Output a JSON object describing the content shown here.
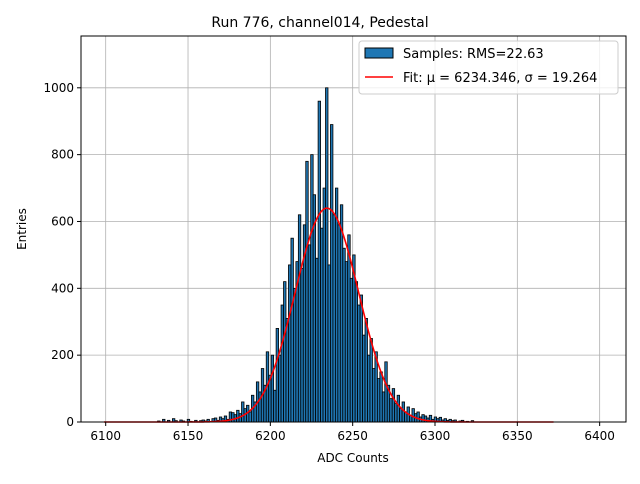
{
  "chart_data": {
    "type": "bar",
    "title": "Run 776, channel014, Pedestal",
    "xlabel": "ADC Counts",
    "ylabel": "Entries",
    "xlim": [
      6085,
      6416
    ],
    "ylim": [
      0,
      1155
    ],
    "xticks": [
      "6100",
      "6150",
      "6200",
      "6250",
      "6300",
      "6350",
      "6400"
    ],
    "yticks": [
      "0",
      "200",
      "400",
      "600",
      "800",
      "1000"
    ],
    "grid": true,
    "legend_position": "top-right",
    "histogram": {
      "name": "Samples: RMS=22.63",
      "bin_start": 6130,
      "bin_width": 1.5,
      "color": "#1f77b4",
      "values": [
        0,
        3,
        0,
        8,
        0,
        5,
        0,
        10,
        4,
        0,
        6,
        3,
        0,
        8,
        2,
        0,
        5,
        0,
        4,
        6,
        3,
        8,
        0,
        10,
        12,
        5,
        15,
        10,
        18,
        8,
        30,
        28,
        22,
        35,
        25,
        60,
        40,
        50,
        30,
        80,
        60,
        120,
        90,
        160,
        110,
        210,
        140,
        200,
        95,
        280,
        200,
        350,
        420,
        310,
        470,
        550,
        400,
        480,
        620,
        460,
        590,
        780,
        530,
        800,
        680,
        490,
        960,
        580,
        700,
        1000,
        470,
        890,
        620,
        700,
        590,
        650,
        520,
        480,
        560,
        430,
        500,
        420,
        350,
        380,
        260,
        310,
        200,
        250,
        160,
        210,
        130,
        150,
        90,
        180,
        110,
        70,
        100,
        55,
        80,
        40,
        60,
        30,
        45,
        20,
        40,
        25,
        30,
        15,
        22,
        18,
        12,
        20,
        8,
        15,
        10,
        14,
        6,
        10,
        5,
        8,
        4,
        6,
        0,
        3,
        5,
        0,
        2,
        0,
        4,
        0
      ]
    },
    "fit": {
      "name": "Fit: μ = 6234.346, σ = 19.264",
      "mu": 6234.346,
      "sigma": 19.264,
      "amplitude": 640,
      "x_range": [
        6099,
        6372
      ],
      "color": "#ff0000"
    }
  }
}
